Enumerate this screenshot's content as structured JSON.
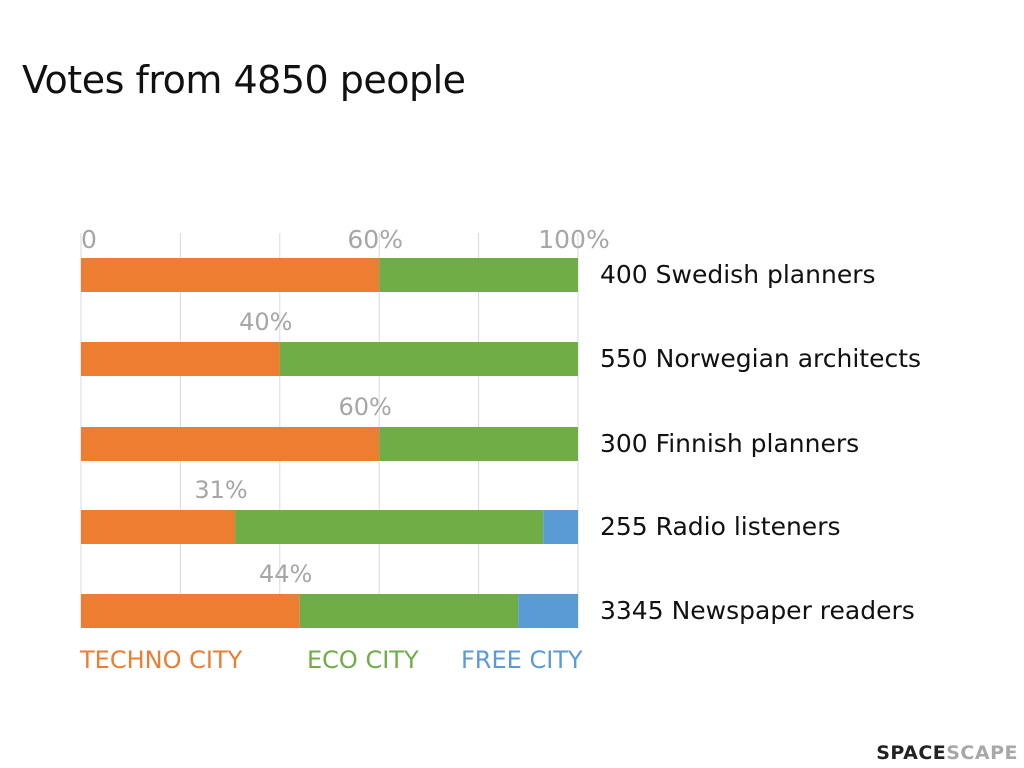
{
  "title": "Votes from 4850 people",
  "logo": {
    "part1": "SPACE",
    "part2": "SCAPE"
  },
  "colors": {
    "techno": "#ED7D31",
    "eco": "#70AD47",
    "free": "#5B9BD5",
    "grid": "#d9d9d9",
    "tick": "#a6a6a6"
  },
  "chart_data": {
    "type": "bar",
    "orientation": "horizontal",
    "stacked": true,
    "categories": [
      "400 Swedish planners",
      "550 Norwegian architects",
      "300 Finnish planners",
      "255 Radio listeners",
      "3345 Newspaper readers"
    ],
    "series": [
      {
        "name": "TECHNO CITY",
        "values": [
          60,
          40,
          60,
          31,
          44
        ]
      },
      {
        "name": "ECO CITY",
        "values": [
          40,
          60,
          40,
          62,
          44
        ]
      },
      {
        "name": "FREE CITY",
        "values": [
          0,
          0,
          0,
          7,
          12
        ]
      }
    ],
    "data_labels": [
      "60%",
      "40%",
      "60%",
      "31%",
      "44%"
    ],
    "axis_ticks": [
      "0",
      "60%",
      "100%"
    ],
    "xlim": [
      0,
      100
    ],
    "grid": true,
    "legend": "bottom"
  }
}
